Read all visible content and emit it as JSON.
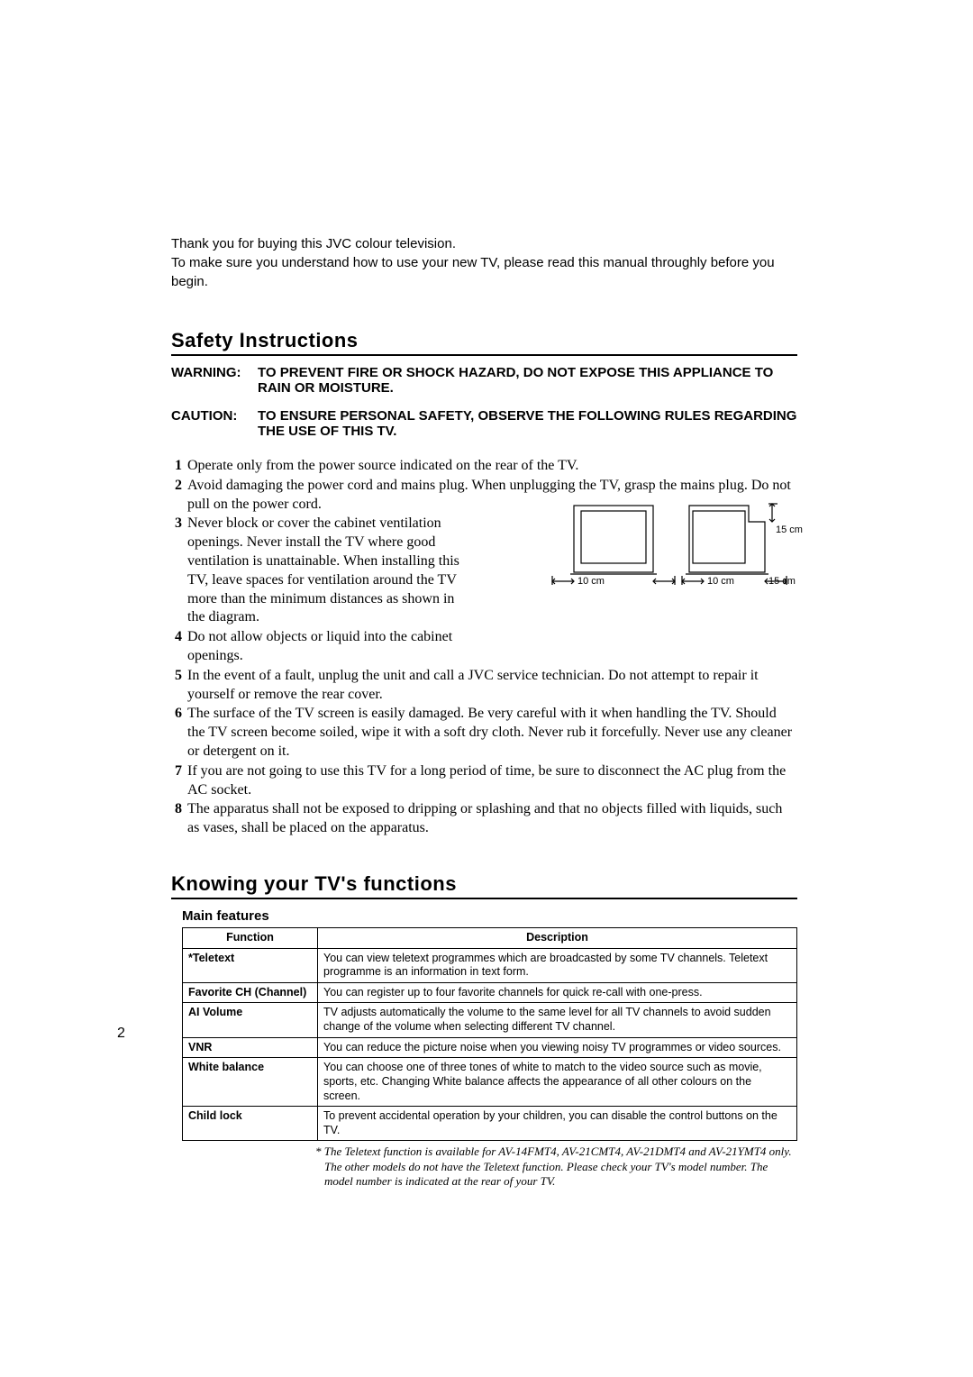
{
  "page_number": "2",
  "intro": {
    "line1": "Thank you for buying this JVC colour television.",
    "line2": "To make sure you understand how to use your new TV, please read this manual throughly before you begin."
  },
  "safety": {
    "heading": "Safety Instructions",
    "warning_label": "WARNING:",
    "warning_text": "TO PREVENT FIRE OR SHOCK HAZARD, DO NOT EXPOSE THIS APPLIANCE TO RAIN OR MOISTURE.",
    "caution_label": "CAUTION:",
    "caution_text": "TO ENSURE PERSONAL SAFETY, OBSERVE THE FOLLOWING RULES REGARDING THE USE OF THIS TV.",
    "items": [
      "Operate only from the power source indicated on the rear of the TV.",
      "Avoid damaging the power cord and mains plug. When unplugging the TV, grasp the mains plug. Do not pull on the power cord.",
      "Never block or cover the cabinet ventilation openings. Never install the TV where good ventilation is unattainable. When installing this TV, leave spaces for ventilation around the TV more than the minimum distances as shown in the diagram.",
      "Do not allow objects or liquid into the cabinet openings.",
      "In the event of a fault, unplug the unit and call a JVC service technician. Do not attempt to repair it yourself or remove the rear cover.",
      "The surface of the TV screen is easily damaged. Be very careful with it when handling the TV. Should the TV screen become soiled, wipe it with a soft dry cloth. Never rub it forcefully. Never use any cleaner or detergent on it.",
      "If you are not going to use this TV for a long period of time, be sure to disconnect the AC plug from the AC socket.",
      "The apparatus shall not be exposed to dripping or splashing and that no objects filled with liquids, such as vases, shall be placed on the apparatus."
    ],
    "diagram": {
      "label_top_right": "15 cm",
      "label_bottom_1": "10 cm",
      "label_bottom_2": "10 cm",
      "label_bottom_3": "15 cm",
      "stroke": "#000000",
      "text_fontsize": 11
    }
  },
  "functions": {
    "heading": "Knowing your TV's functions",
    "subheading": "Main features",
    "columns": [
      "Function",
      "Description"
    ],
    "rows": [
      {
        "fn": "*Teletext",
        "desc": "You can view teletext programmes which are broadcasted by some TV channels. Teletext programme is an information in text form."
      },
      {
        "fn": "Favorite CH (Channel)",
        "desc": "You can register up to four favorite channels for quick re-call with one-press."
      },
      {
        "fn": "AI Volume",
        "desc": "TV adjusts automatically the volume to the same level for all TV channels to avoid sudden change of the volume when selecting different TV channel."
      },
      {
        "fn": "VNR",
        "desc": "You can reduce the picture noise when you viewing noisy TV programmes or video  sources."
      },
      {
        "fn": "White balance",
        "desc": "You can choose one of three tones of white to match to  the video source such as movie, sports, etc. Changing White balance affects the appearance of all other colours on the screen."
      },
      {
        "fn": "Child lock",
        "desc": "To prevent accidental operation by your children, you can disable the control buttons on the TV."
      }
    ],
    "footnote": "* The Teletext function is available for AV-14FMT4, AV-21CMT4, AV-21DMT4 and AV-21YMT4 only.\nThe other models do not have the Teletext function. Please check your TV's model number. The model number is indicated at the rear of your TV."
  },
  "colors": {
    "text": "#000000",
    "background": "#ffffff",
    "rule": "#000000"
  },
  "typography": {
    "body_family": "Helvetica/Arial",
    "serif_family": "Times New Roman",
    "heading_weight": 900
  }
}
